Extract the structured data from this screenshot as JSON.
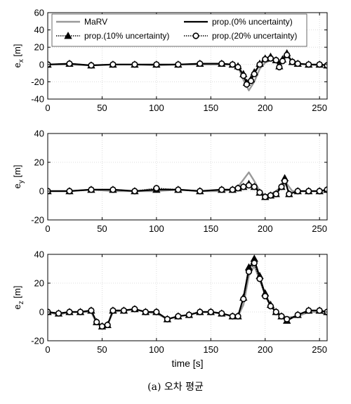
{
  "caption": "(a) 오차 평균",
  "legend": [
    {
      "name": "MaRV",
      "color": "#999999",
      "style": "solid",
      "marker": "none"
    },
    {
      "name": "prop.(0% uncertainty)",
      "color": "#000000",
      "style": "solid",
      "marker": "none"
    },
    {
      "name": "prop.(10% uncertainty)",
      "color": "#000000",
      "style": "dotted",
      "marker": "triangle"
    },
    {
      "name": "prop.(20% uncertainty)",
      "color": "#000000",
      "style": "dotted",
      "marker": "circle"
    }
  ],
  "chart_data": [
    {
      "type": "line",
      "ylabel": "e_x [m]",
      "xlabel": "",
      "xlim": [
        0,
        257
      ],
      "ylim": [
        -40,
        60
      ],
      "xticks": [
        0,
        50,
        100,
        150,
        200,
        250
      ],
      "yticks": [
        -40,
        -20,
        0,
        20,
        40,
        60
      ],
      "grid": true,
      "legend_position": "top",
      "series": [
        {
          "name": "MaRV",
          "x": [
            0,
            20,
            40,
            60,
            80,
            100,
            120,
            140,
            160,
            170,
            175,
            180,
            185,
            190,
            195,
            200,
            205,
            210,
            215,
            220,
            225,
            230,
            240,
            250,
            257
          ],
          "y": [
            0,
            0,
            -1,
            0,
            0,
            -1,
            0,
            0,
            0,
            0,
            -2,
            -18,
            -30,
            -20,
            -5,
            2,
            5,
            4,
            2,
            10,
            3,
            1,
            0,
            -1,
            0
          ]
        },
        {
          "name": "prop.(0% uncertainty)",
          "x": [
            0,
            20,
            40,
            60,
            80,
            100,
            120,
            140,
            160,
            170,
            175,
            180,
            183,
            187,
            190,
            195,
            200,
            205,
            210,
            213,
            216,
            220,
            225,
            230,
            240,
            250,
            257
          ],
          "y": [
            0,
            1,
            -1,
            0,
            0,
            0,
            0,
            1,
            1,
            0,
            -3,
            -12,
            -22,
            -18,
            -10,
            0,
            6,
            8,
            5,
            -3,
            5,
            12,
            3,
            1,
            0,
            0,
            -1
          ]
        },
        {
          "name": "prop.(10% uncertainty)",
          "x": [
            0,
            20,
            40,
            60,
            80,
            100,
            120,
            140,
            160,
            170,
            175,
            180,
            183,
            187,
            190,
            195,
            200,
            205,
            210,
            213,
            216,
            220,
            225,
            230,
            240,
            250,
            257
          ],
          "y": [
            0,
            1,
            -1,
            0,
            0,
            0,
            0,
            1,
            1,
            0,
            -2,
            -11,
            -21,
            -17,
            -9,
            1,
            7,
            9,
            5,
            -2,
            6,
            13,
            3,
            1,
            0,
            0,
            -1
          ]
        },
        {
          "name": "prop.(20% uncertainty)",
          "x": [
            0,
            20,
            40,
            60,
            80,
            100,
            120,
            140,
            160,
            170,
            175,
            180,
            183,
            187,
            190,
            195,
            200,
            205,
            210,
            213,
            216,
            220,
            225,
            230,
            240,
            250,
            257
          ],
          "y": [
            0,
            1,
            -1,
            0,
            0,
            0,
            0,
            1,
            1,
            0,
            -3,
            -13,
            -23,
            -19,
            -11,
            0,
            6,
            7,
            5,
            -3,
            4,
            11,
            3,
            1,
            0,
            0,
            -1
          ]
        }
      ]
    },
    {
      "type": "line",
      "ylabel": "e_y [m]",
      "xlabel": "",
      "xlim": [
        0,
        257
      ],
      "ylim": [
        -20,
        40
      ],
      "xticks": [
        0,
        50,
        100,
        150,
        200,
        250
      ],
      "yticks": [
        -20,
        0,
        20,
        40
      ],
      "grid": true,
      "series": [
        {
          "name": "MaRV",
          "x": [
            0,
            20,
            40,
            60,
            80,
            100,
            120,
            140,
            160,
            170,
            175,
            180,
            185,
            190,
            195,
            200,
            205,
            210,
            215,
            220,
            225,
            230,
            240,
            250,
            257
          ],
          "y": [
            0,
            0,
            1,
            0,
            0,
            0,
            1,
            0,
            0,
            1,
            3,
            8,
            13,
            7,
            0,
            -3,
            -2,
            0,
            3,
            5,
            0,
            0,
            0,
            0,
            1
          ]
        },
        {
          "name": "prop.(0% uncertainty)",
          "x": [
            0,
            20,
            40,
            60,
            80,
            100,
            120,
            140,
            160,
            170,
            175,
            180,
            185,
            190,
            195,
            200,
            205,
            210,
            215,
            218,
            222,
            230,
            240,
            250,
            257
          ],
          "y": [
            0,
            0,
            1,
            1,
            0,
            1,
            1,
            0,
            1,
            1,
            2,
            3,
            4,
            3,
            -1,
            -4,
            -3,
            -2,
            3,
            8,
            -2,
            0,
            0,
            0,
            1
          ]
        },
        {
          "name": "prop.(10% uncertainty)",
          "x": [
            0,
            20,
            40,
            60,
            80,
            100,
            120,
            140,
            160,
            170,
            175,
            180,
            185,
            190,
            195,
            200,
            205,
            210,
            215,
            218,
            222,
            230,
            240,
            250,
            257
          ],
          "y": [
            0,
            0,
            1,
            1,
            0,
            1,
            1,
            0,
            1,
            1,
            2,
            3,
            5,
            3,
            -1,
            -4,
            -3,
            -2,
            3,
            9,
            -2,
            0,
            0,
            0,
            1
          ]
        },
        {
          "name": "prop.(20% uncertainty)",
          "x": [
            0,
            20,
            40,
            60,
            80,
            100,
            120,
            140,
            160,
            170,
            175,
            180,
            185,
            190,
            195,
            200,
            205,
            210,
            215,
            218,
            222,
            230,
            240,
            250,
            257
          ],
          "y": [
            0,
            0,
            1,
            1,
            0,
            2,
            1,
            0,
            1,
            1,
            2,
            3,
            4,
            3,
            -1,
            -4,
            -3,
            -2,
            3,
            7,
            -2,
            0,
            0,
            0,
            1
          ]
        }
      ]
    },
    {
      "type": "line",
      "ylabel": "e_z [m]",
      "xlabel": "time [s]",
      "xlim": [
        0,
        257
      ],
      "ylim": [
        -20,
        40
      ],
      "xticks": [
        0,
        50,
        100,
        150,
        200,
        250
      ],
      "yticks": [
        -20,
        0,
        20,
        40
      ],
      "grid": true,
      "series": [
        {
          "name": "MaRV",
          "x": [
            0,
            10,
            20,
            30,
            40,
            45,
            50,
            55,
            60,
            70,
            80,
            90,
            100,
            110,
            120,
            130,
            140,
            150,
            160,
            170,
            175,
            180,
            185,
            190,
            195,
            200,
            205,
            210,
            215,
            220,
            230,
            240,
            250,
            257
          ],
          "y": [
            0,
            -2,
            0,
            0,
            0,
            -8,
            -10,
            -9,
            0,
            1,
            2,
            0,
            -1,
            -5,
            -3,
            -2,
            0,
            0,
            -1,
            -3,
            -3,
            5,
            25,
            32,
            22,
            12,
            5,
            0,
            -2,
            -4,
            -3,
            0,
            0,
            -2
          ]
        },
        {
          "name": "prop.(0% uncertainty)",
          "x": [
            0,
            10,
            20,
            30,
            40,
            45,
            50,
            55,
            60,
            70,
            80,
            90,
            100,
            110,
            120,
            130,
            140,
            150,
            160,
            170,
            175,
            180,
            185,
            190,
            195,
            200,
            205,
            210,
            215,
            220,
            230,
            240,
            250,
            257
          ],
          "y": [
            0,
            -1,
            0,
            0,
            1,
            -7,
            -10,
            -9,
            1,
            1,
            2,
            0,
            0,
            -5,
            -3,
            -2,
            0,
            0,
            -1,
            -3,
            -3,
            10,
            30,
            36,
            24,
            12,
            4,
            0,
            -3,
            -6,
            -2,
            1,
            1,
            0
          ]
        },
        {
          "name": "prop.(10% uncertainty)",
          "x": [
            0,
            10,
            20,
            30,
            40,
            45,
            50,
            55,
            60,
            70,
            80,
            90,
            100,
            110,
            120,
            130,
            140,
            150,
            160,
            170,
            175,
            180,
            185,
            190,
            195,
            200,
            205,
            210,
            215,
            220,
            230,
            240,
            250,
            257
          ],
          "y": [
            0,
            -1,
            0,
            0,
            1,
            -7,
            -10,
            -9,
            1,
            1,
            2,
            0,
            0,
            -5,
            -3,
            -2,
            0,
            0,
            -1,
            -3,
            -3,
            10,
            31,
            37,
            25,
            13,
            5,
            0,
            -3,
            -6,
            -2,
            1,
            1,
            0
          ]
        },
        {
          "name": "prop.(20% uncertainty)",
          "x": [
            0,
            10,
            20,
            30,
            40,
            45,
            50,
            55,
            60,
            70,
            80,
            90,
            100,
            110,
            120,
            130,
            140,
            150,
            160,
            170,
            175,
            180,
            185,
            190,
            195,
            200,
            205,
            210,
            215,
            220,
            230,
            240,
            250,
            257
          ],
          "y": [
            0,
            -1,
            0,
            0,
            1,
            -7,
            -10,
            -9,
            1,
            1,
            2,
            0,
            0,
            -5,
            -3,
            -2,
            0,
            0,
            -1,
            -3,
            -3,
            9,
            28,
            34,
            23,
            11,
            4,
            0,
            -3,
            -5,
            -2,
            1,
            1,
            0
          ]
        }
      ]
    }
  ]
}
